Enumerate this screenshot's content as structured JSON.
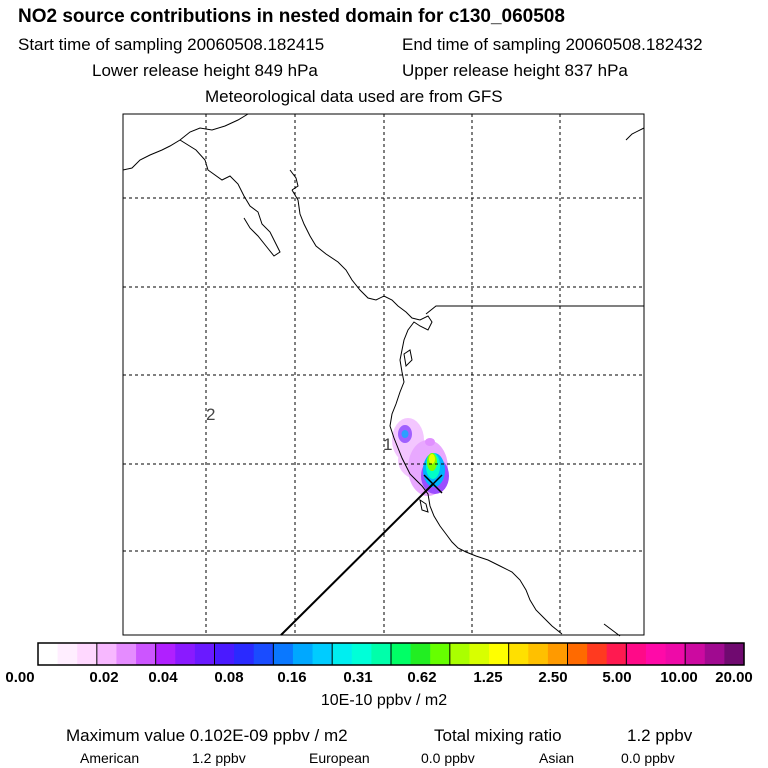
{
  "header": {
    "title": "NO2 source contributions in nested domain for c130_060508",
    "start_label": "Start time of sampling 20060508.182415",
    "end_label": "End time of sampling 20060508.182432",
    "lower_label": "Lower release height  849 hPa",
    "upper_label": "Upper release height  837 hPa",
    "met_label": "Meteorological data used are from GFS"
  },
  "map": {
    "labels": [
      "2",
      "1"
    ],
    "colors": {
      "grid": "#000000",
      "coast": "#000000",
      "track": "#000000"
    }
  },
  "colorbar": {
    "ticks": [
      "0.00",
      "0.02",
      "0.04",
      "0.08",
      "0.16",
      "0.31",
      "0.62",
      "1.25",
      "2.50",
      "5.00",
      "10.00",
      "20.00"
    ],
    "unit": "10E-10 ppbv / m2",
    "colors": [
      "#ffffff",
      "#ffeeff",
      "#ffd8ff",
      "#f7b8ff",
      "#e58cff",
      "#cc55ff",
      "#b020ff",
      "#8a1aff",
      "#6a1aff",
      "#4a1aff",
      "#2a2aff",
      "#1a4cff",
      "#0a78ff",
      "#00a8ff",
      "#00ccff",
      "#00eef0",
      "#00ffd8",
      "#00ffaa",
      "#00ff66",
      "#22ee22",
      "#66ff00",
      "#aaff00",
      "#d8ff00",
      "#ffff00",
      "#ffe000",
      "#ffc000",
      "#ff9a00",
      "#ff6a00",
      "#ff3a20",
      "#ff1a50",
      "#ff0a88",
      "#ff0aa8",
      "#ee0aa8",
      "#cc0aa0",
      "#a00a90",
      "#700a70"
    ]
  },
  "footer": {
    "max_value": "Maximum value  0.102E-09 ppbv / m2",
    "total_label": "Total mixing ratio",
    "total_value": "1.2 ppbv",
    "american_label": "American",
    "american_value": "1.2 ppbv",
    "european_label": "European",
    "european_value": "0.0 ppbv",
    "asian_label": "Asian",
    "asian_value": "0.0 ppbv"
  }
}
